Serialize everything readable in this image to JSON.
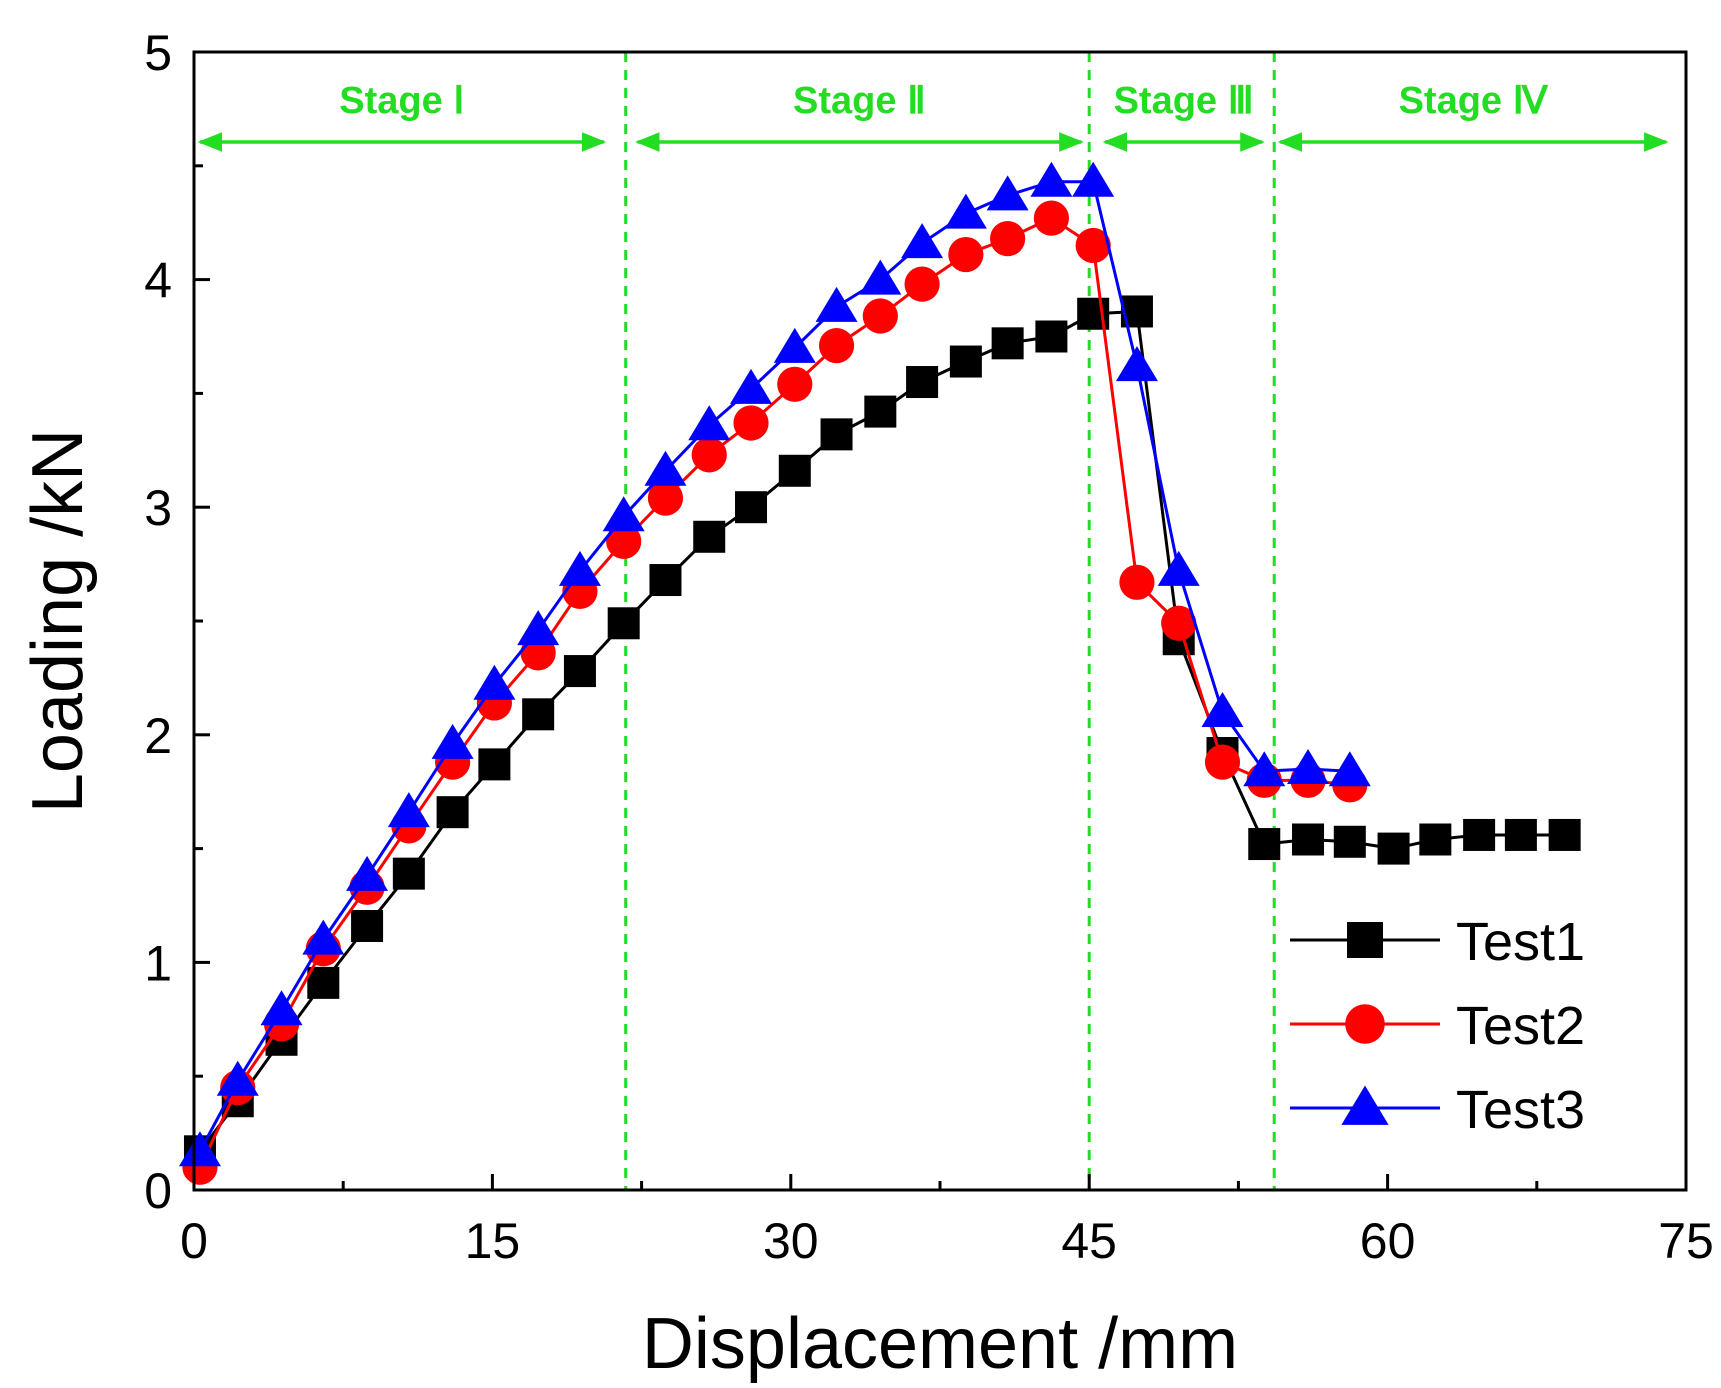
{
  "chart_data": {
    "type": "line",
    "xlabel": "Displacement /mm",
    "ylabel": "Loading /kN",
    "xlim": [
      0,
      75
    ],
    "ylim": [
      0,
      5
    ],
    "xticks": [
      0,
      15,
      30,
      45,
      60,
      75
    ],
    "yticks": [
      0,
      1,
      2,
      3,
      4,
      5
    ],
    "xtick_labels": [
      "0",
      "15",
      "30",
      "45",
      "60",
      "75"
    ],
    "ytick_labels": [
      "0",
      "1",
      "2",
      "3",
      "4",
      "5"
    ],
    "grid": false,
    "legend_position": "bottom-right",
    "stage_color": "#22dd22",
    "stage_boundaries": [
      21.7,
      45.0,
      54.3
    ],
    "stages": [
      {
        "label": "Stage Ⅰ",
        "from": 0.3,
        "to": 20.6
      },
      {
        "label": "Stage Ⅱ",
        "from": 22.3,
        "to": 44.6
      },
      {
        "label": "Stage Ⅲ",
        "from": 45.8,
        "to": 53.7
      },
      {
        "label": "Stage Ⅳ",
        "from": 54.6,
        "to": 74.0
      }
    ],
    "series": [
      {
        "name": "Test1",
        "color": "#000000",
        "marker": "square",
        "x": [
          0.3,
          2.2,
          4.4,
          6.5,
          8.7,
          10.8,
          13.0,
          15.1,
          17.3,
          19.4,
          21.6,
          23.7,
          25.9,
          28.0,
          30.2,
          32.3,
          34.5,
          36.6,
          38.8,
          40.9,
          43.1,
          45.2,
          47.4,
          49.5,
          51.7,
          53.8,
          56.0,
          58.1,
          60.3,
          62.4,
          64.6,
          66.7,
          68.9
        ],
        "y": [
          0.17,
          0.39,
          0.66,
          0.91,
          1.16,
          1.39,
          1.66,
          1.87,
          2.09,
          2.28,
          2.49,
          2.68,
          2.87,
          3.0,
          3.16,
          3.32,
          3.42,
          3.55,
          3.64,
          3.72,
          3.75,
          3.85,
          3.86,
          2.42,
          1.92,
          1.52,
          1.54,
          1.53,
          1.5,
          1.54,
          1.56,
          1.56,
          1.56
        ]
      },
      {
        "name": "Test2",
        "color": "#ff0000",
        "marker": "circle",
        "x": [
          0.3,
          2.2,
          4.4,
          6.5,
          8.7,
          10.8,
          13.0,
          15.1,
          17.3,
          19.4,
          21.6,
          23.7,
          25.9,
          28.0,
          30.2,
          32.3,
          34.5,
          36.6,
          38.8,
          40.9,
          43.1,
          45.2,
          47.4,
          49.5,
          51.7,
          53.8,
          56.0,
          58.1
        ],
        "y": [
          0.1,
          0.45,
          0.73,
          1.06,
          1.33,
          1.6,
          1.88,
          2.14,
          2.36,
          2.63,
          2.85,
          3.04,
          3.23,
          3.37,
          3.54,
          3.71,
          3.84,
          3.98,
          4.11,
          4.18,
          4.27,
          4.15,
          2.67,
          2.49,
          1.88,
          1.8,
          1.8,
          1.78
        ]
      },
      {
        "name": "Test3",
        "color": "#0000ff",
        "marker": "triangle",
        "x": [
          0.3,
          2.2,
          4.4,
          6.5,
          8.7,
          10.8,
          13.0,
          15.1,
          17.3,
          19.4,
          21.6,
          23.7,
          25.9,
          28.0,
          30.2,
          32.3,
          34.5,
          36.6,
          38.8,
          40.9,
          43.1,
          45.2,
          47.4,
          49.5,
          51.7,
          53.8,
          56.0,
          58.1
        ],
        "y": [
          0.17,
          0.48,
          0.79,
          1.1,
          1.38,
          1.66,
          1.96,
          2.22,
          2.46,
          2.72,
          2.96,
          3.16,
          3.36,
          3.52,
          3.7,
          3.88,
          4.0,
          4.16,
          4.29,
          4.37,
          4.43,
          4.43,
          3.62,
          2.72,
          2.1,
          1.84,
          1.85,
          1.84
        ]
      }
    ]
  }
}
